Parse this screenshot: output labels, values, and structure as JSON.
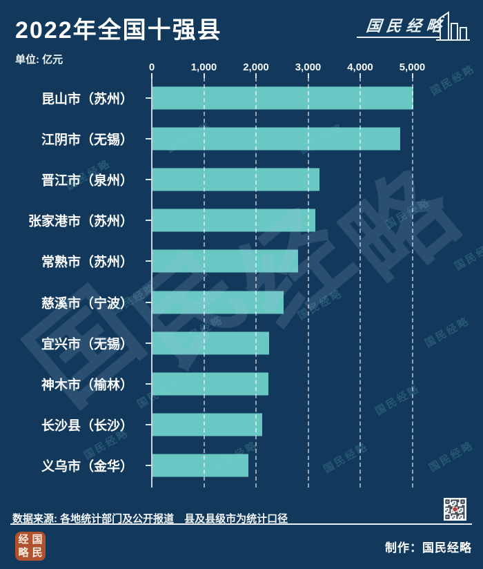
{
  "header": {
    "title": "2022年全国十强县",
    "unit_label": "单位: 亿元"
  },
  "branding": {
    "logo_text": "国民经略",
    "watermark_text": "国民经略",
    "watermark_chars": [
      "国",
      "民",
      "经",
      "略"
    ],
    "seal_chars": [
      "经",
      "国",
      "略",
      "民"
    ],
    "seal_color": "#B0512F"
  },
  "footer": {
    "source_text": "数据来源: 各地统计部门及公开报道　县及县级市为统计口径",
    "maker_label": "制作：国民经略"
  },
  "chart_data": {
    "type": "bar",
    "orientation": "horizontal",
    "title": "2022年全国十强县",
    "unit": "亿元",
    "categories": [
      "昆山市（苏州）",
      "江阴市（无锡）",
      "晋江市（泉州）",
      "张家港市（苏州）",
      "常熟市（苏州）",
      "慈溪市（宁波）",
      "宜兴市（无锡）",
      "神木市（榆林）",
      "长沙县（长沙）",
      "义乌市（金华）"
    ],
    "values": [
      5000,
      4750,
      3210,
      3120,
      2800,
      2520,
      2240,
      2230,
      2110,
      1835
    ],
    "x_ticks": {
      "labels": [
        "0",
        "1,000",
        "2,000",
        "3,000",
        "4,000",
        "5,000"
      ],
      "values": [
        0,
        1000,
        2000,
        3000,
        4000,
        5000
      ]
    },
    "xlim": [
      0,
      5900
    ],
    "grid": "vertical-dashed",
    "legend": "none",
    "bar_color": "#69C7C4",
    "background_color": "#12395C",
    "axis_text_color": "#F4F8FB"
  }
}
